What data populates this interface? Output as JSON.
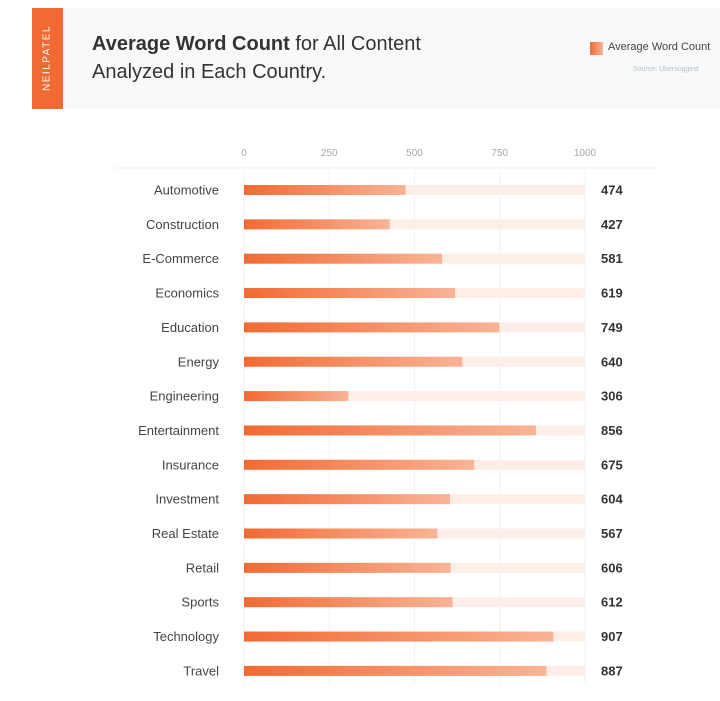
{
  "header": {
    "brand": "NEILPATEL",
    "title_bold": "Average Word Count",
    "title_rest_line1": " for All Content",
    "title_line2": "Analyzed in Each Country.",
    "legend_label": "Average Word Count",
    "source": "Source: Ubersuggest"
  },
  "colors": {
    "accent": "#f26a33",
    "accent_light": "#f9b496",
    "track": "#fdeee8"
  },
  "chart_data": {
    "type": "bar",
    "orientation": "horizontal",
    "categories": [
      "Automotive",
      "Construction",
      "E-Commerce",
      "Economics",
      "Education",
      "Energy",
      "Engineering",
      "Entertainment",
      "Insurance",
      "Investment",
      "Real Estate",
      "Retail",
      "Sports",
      "Technology",
      "Travel"
    ],
    "values": [
      474,
      427,
      581,
      619,
      749,
      640,
      306,
      856,
      675,
      604,
      567,
      606,
      612,
      907,
      887
    ],
    "x_ticks": [
      0,
      250,
      500,
      750,
      1000
    ],
    "xlim": [
      0,
      1000
    ],
    "series": [
      {
        "name": "Average Word Count"
      }
    ],
    "legend_position": "top-right",
    "value_labels": true,
    "grid": true
  }
}
